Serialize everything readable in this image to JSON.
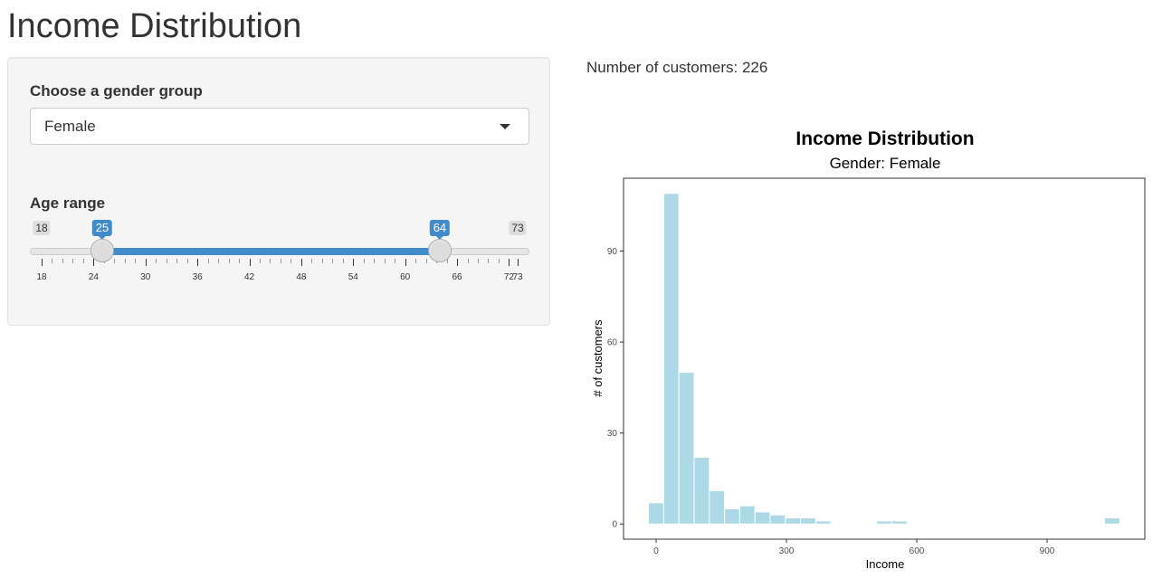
{
  "app": {
    "title": "Income Distribution"
  },
  "sidebar": {
    "gender_label": "Choose a gender group",
    "gender_selected": "Female",
    "age_label": "Age range",
    "age_slider": {
      "min": 18,
      "max": 73,
      "from": 25,
      "to": 64,
      "min_label": "18",
      "max_label": "73",
      "from_label": "25",
      "to_label": "64",
      "major_ticks": [
        "18",
        "24",
        "30",
        "36",
        "42",
        "48",
        "54",
        "60",
        "66",
        "72",
        "73"
      ]
    }
  },
  "main": {
    "count_text": "Number of customers: 226"
  },
  "colors": {
    "bar_fill": "#add8e6",
    "accent": "#428bca"
  },
  "chart_data": {
    "type": "bar",
    "title": "Income Distribution",
    "subtitle": "Gender: Female",
    "xlabel": "Income",
    "ylabel": "# of customers",
    "xlim": [
      -75,
      1125
    ],
    "ylim": [
      -5,
      114
    ],
    "x_ticks": [
      0,
      300,
      600,
      900
    ],
    "y_ticks": [
      0,
      30,
      60,
      90
    ],
    "bin_width": 35,
    "bin_centers": [
      0,
      35,
      70,
      105,
      140,
      175,
      210,
      245,
      280,
      315,
      350,
      385,
      420,
      455,
      490,
      525,
      560,
      595,
      630,
      665,
      700,
      735,
      770,
      805,
      840,
      875,
      910,
      945,
      980,
      1015,
      1050
    ],
    "values": [
      7,
      109,
      50,
      22,
      11,
      5,
      6,
      4,
      3,
      2,
      2,
      1,
      0,
      0,
      0,
      1,
      1,
      0,
      0,
      0,
      0,
      0,
      0,
      0,
      0,
      0,
      0,
      0,
      0,
      0,
      2
    ],
    "grid": false
  }
}
